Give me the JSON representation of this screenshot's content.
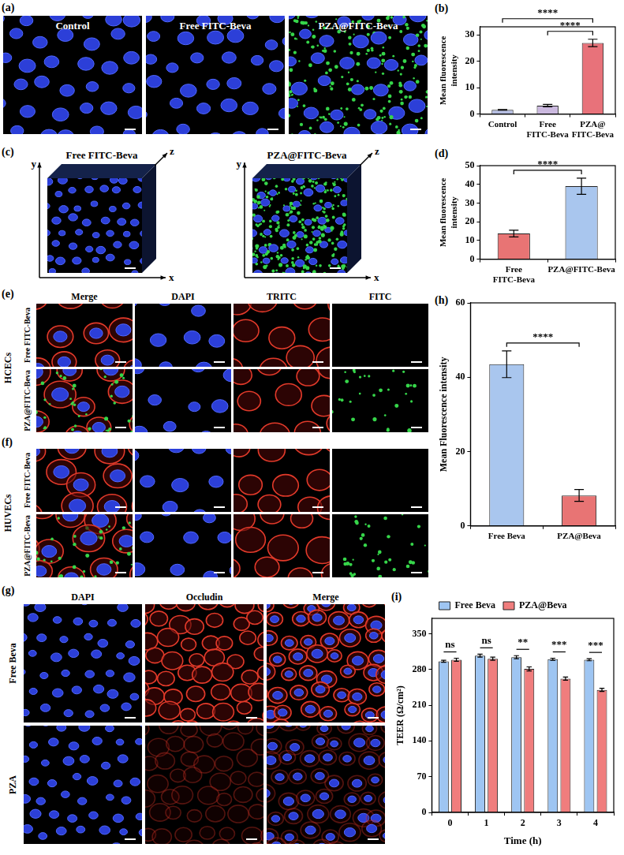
{
  "images": [
    {
      "panel": "(a)",
      "titles": [
        "Control",
        "Free FITC-Beva",
        "PZA@FITC-Beva"
      ]
    },
    {
      "panel": "(c)",
      "titles": [
        "Free FITC-Beva",
        "PZA@FITC-Beva"
      ],
      "axes": [
        "x",
        "y",
        "z"
      ]
    },
    {
      "panel": "(e)",
      "cell_line": "HCECs",
      "columns": [
        "Merge",
        "DAPI",
        "TRITC",
        "FITC"
      ],
      "rows": [
        "Free FITC-Beva",
        "PZA@FITC-Beva"
      ]
    },
    {
      "panel": "(f)",
      "cell_line": "HUVECs",
      "rows": [
        "Free FITC-Beva",
        "PZA@FITC-Beva"
      ]
    },
    {
      "panel": "(g)",
      "columns": [
        "DAPI",
        "Occludin",
        "Merge"
      ],
      "rows": [
        "Free Beva",
        "PZA"
      ]
    }
  ],
  "chart_data": [
    {
      "panel": "(b)",
      "type": "bar",
      "categories": [
        "Control",
        "Free FITC-Beva",
        "PZA@FITC-Beva"
      ],
      "values": [
        1.6,
        3.2,
        26.9
      ],
      "errors": [
        0.15,
        0.45,
        1.4
      ],
      "colors": [
        "#b4bce0",
        "#cbb9df",
        "#e8727a"
      ],
      "y_label": "Mean fluorescence intensity",
      "ylim": [
        0,
        33
      ],
      "yticks": [
        0,
        10,
        20,
        30
      ],
      "grid": false,
      "significance": [
        {
          "between": [
            "Control",
            "PZA@FITC-Beva"
          ],
          "label": "****"
        },
        {
          "between": [
            "Free FITC-Beva",
            "PZA@FITC-Beva"
          ],
          "label": "****"
        }
      ]
    },
    {
      "panel": "(d)",
      "type": "bar",
      "categories": [
        "Free FITC-Beva",
        "PZA@FITC-Beva"
      ],
      "values": [
        13.7,
        39.0
      ],
      "errors": [
        1.8,
        4.3
      ],
      "colors": [
        "#e87474",
        "#a9c6ee"
      ],
      "y_label": "Mean fluorescence intensity",
      "ylim": [
        0,
        50
      ],
      "yticks": [
        0,
        10,
        20,
        30,
        40,
        50
      ],
      "grid": false,
      "significance": [
        {
          "between": [
            "Free FITC-Beva",
            "PZA@FITC-Beva"
          ],
          "label": "****"
        }
      ]
    },
    {
      "panel": "(h)",
      "type": "bar",
      "categories": [
        "Free Beva",
        "PZA@Beva"
      ],
      "values": [
        43.5,
        8.2
      ],
      "errors": [
        3.6,
        1.6
      ],
      "colors": [
        "#a9c6ee",
        "#e87474"
      ],
      "y_label": "Mean Fluorescence intensity",
      "ylim": [
        0,
        60
      ],
      "yticks": [
        0,
        20,
        40,
        60
      ],
      "grid": false,
      "significance": [
        {
          "between": [
            "Free Beva",
            "PZA@Beva"
          ],
          "label": "****"
        }
      ]
    },
    {
      "panel": "(i)",
      "type": "bar",
      "categories": [
        "0",
        "1",
        "2",
        "3",
        "4"
      ],
      "x_label": "Time (h)",
      "y_label": "TEER (Ω/cm²)",
      "series": [
        {
          "name": "Free Beva",
          "color": "#9ec5f2",
          "values": [
            296,
            307,
            304,
            300,
            299
          ],
          "errors": [
            2,
            3,
            3,
            2,
            2
          ]
        },
        {
          "name": "PZA@Beva",
          "color": "#f07d7d",
          "values": [
            299,
            301,
            281,
            262,
            240
          ],
          "errors": [
            3,
            3,
            4,
            3,
            3
          ]
        }
      ],
      "ylim": [
        0,
        380
      ],
      "yticks": [
        0,
        70,
        140,
        210,
        280,
        350
      ],
      "grid": false,
      "legend": "top",
      "significance": [
        {
          "category": "0",
          "label": "ns"
        },
        {
          "category": "1",
          "label": "ns"
        },
        {
          "category": "2",
          "label": "**"
        },
        {
          "category": "3",
          "label": "***"
        },
        {
          "category": "4",
          "label": "***"
        }
      ]
    }
  ]
}
